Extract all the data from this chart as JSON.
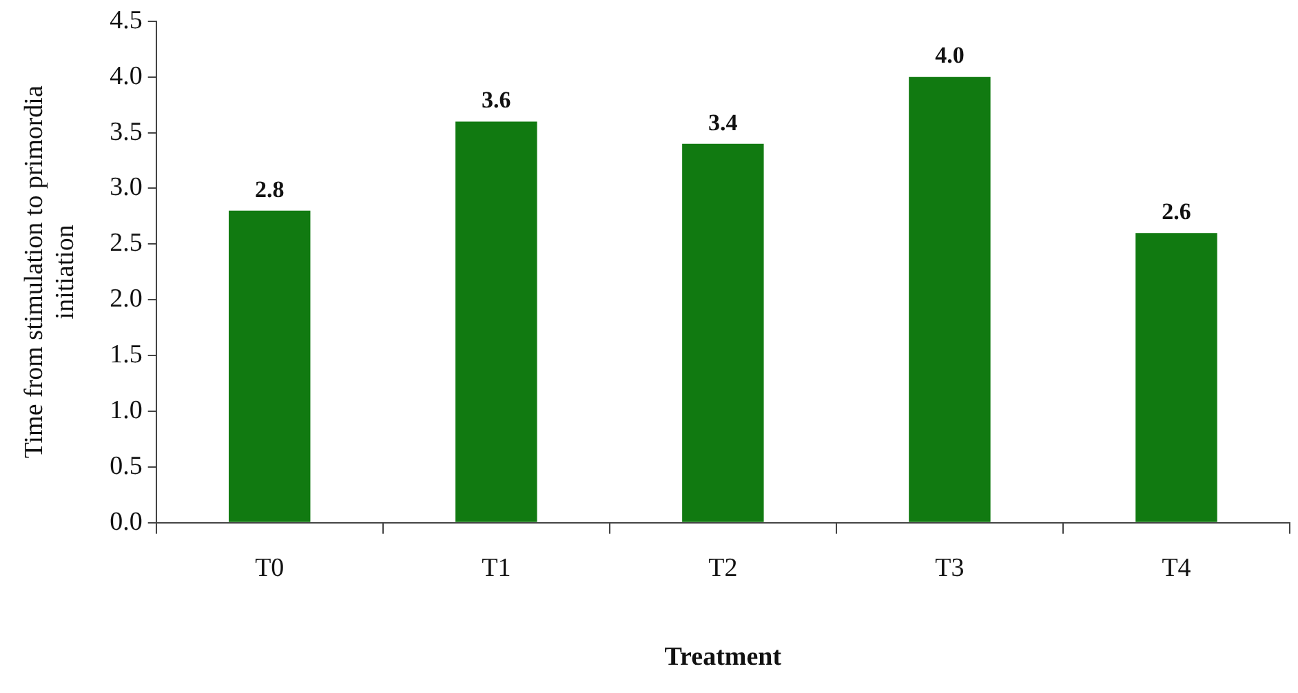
{
  "chart_data": {
    "type": "bar",
    "xlabel": "Treatment",
    "ylabel": "Time from stimulation to primordia initiation",
    "categories": [
      "T0",
      "T1",
      "T2",
      "T3",
      "T4"
    ],
    "values": [
      2.8,
      3.6,
      3.4,
      4.0,
      2.6
    ],
    "color": "#117a11",
    "value_labels": [
      "2.8",
      "3.6",
      "3.4",
      "4.0",
      "2.6"
    ],
    "ylim": [
      0,
      4.5
    ],
    "yticks": [
      {
        "value": 0,
        "label": "0.0"
      },
      {
        "value": 0.5,
        "label": "0.5"
      },
      {
        "value": 1,
        "label": "1.0"
      },
      {
        "value": 1.5,
        "label": "1.5"
      },
      {
        "value": 2,
        "label": "2.0"
      },
      {
        "value": 2.5,
        "label": "2.5"
      },
      {
        "value": 3,
        "label": "3.0"
      },
      {
        "value": 3.5,
        "label": "3.5"
      },
      {
        "value": 4,
        "label": "4.0"
      },
      {
        "value": 4.5,
        "label": "4.5"
      }
    ],
    "grid": false,
    "legend": false
  }
}
